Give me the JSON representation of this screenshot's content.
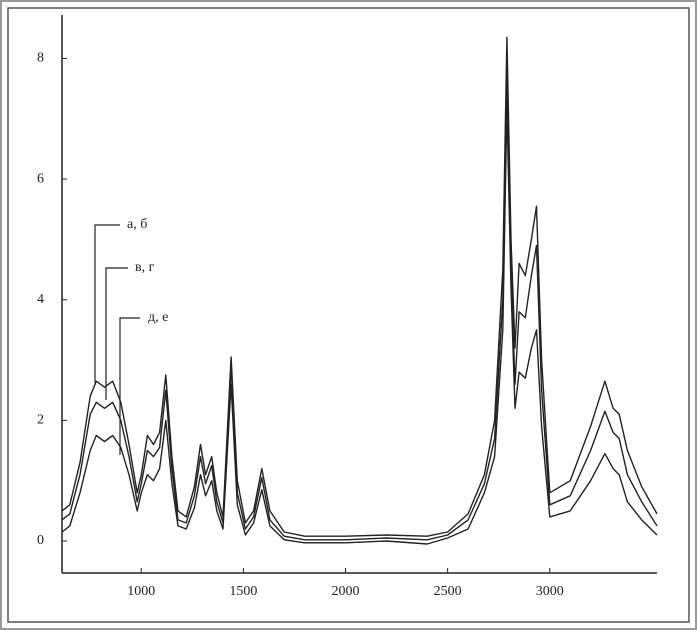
{
  "chart_data": {
    "type": "line",
    "annotations": [
      "а, б",
      "в, г",
      "д, е"
    ],
    "x": [
      612,
      650,
      700,
      750,
      780,
      820,
      860,
      900,
      940,
      980,
      1000,
      1030,
      1060,
      1090,
      1120,
      1150,
      1180,
      1220,
      1260,
      1290,
      1315,
      1345,
      1370,
      1400,
      1440,
      1470,
      1510,
      1550,
      1590,
      1630,
      1700,
      1800,
      2000,
      2200,
      2400,
      2500,
      2600,
      2680,
      2730,
      2770,
      2790,
      2810,
      2830,
      2850,
      2880,
      2910,
      2935,
      2960,
      3000,
      3100,
      3200,
      3270,
      3310,
      3340,
      3380,
      3450,
      3525
    ],
    "series": [
      {
        "color": "#222",
        "values": [
          0.5,
          0.6,
          1.3,
          2.4,
          2.65,
          2.55,
          2.65,
          2.3,
          1.6,
          0.8,
          1.1,
          1.75,
          1.6,
          1.8,
          2.75,
          1.4,
          0.5,
          0.4,
          0.9,
          1.6,
          1.1,
          1.4,
          0.8,
          0.4,
          3.05,
          1.0,
          0.3,
          0.5,
          1.2,
          0.5,
          0.15,
          0.08,
          0.08,
          0.1,
          0.08,
          0.15,
          0.45,
          1.1,
          2.0,
          4.5,
          8.35,
          5.0,
          3.2,
          4.6,
          4.4,
          5.0,
          5.55,
          3.0,
          0.8,
          1.0,
          1.9,
          2.65,
          2.2,
          2.1,
          1.5,
          0.9,
          0.45
        ]
      },
      {
        "color": "#222",
        "values": [
          0.35,
          0.45,
          1.1,
          2.1,
          2.3,
          2.2,
          2.3,
          2.0,
          1.4,
          0.65,
          0.95,
          1.5,
          1.4,
          1.55,
          2.5,
          1.2,
          0.35,
          0.3,
          0.75,
          1.4,
          0.95,
          1.25,
          0.65,
          0.3,
          2.9,
          0.8,
          0.2,
          0.4,
          1.05,
          0.35,
          0.08,
          0.02,
          0.02,
          0.05,
          0.02,
          0.1,
          0.35,
          0.95,
          1.7,
          4.0,
          7.8,
          4.6,
          2.6,
          3.8,
          3.7,
          4.4,
          4.9,
          2.5,
          0.6,
          0.75,
          1.5,
          2.15,
          1.8,
          1.7,
          1.1,
          0.65,
          0.25
        ]
      },
      {
        "color": "#222",
        "values": [
          0.15,
          0.25,
          0.8,
          1.5,
          1.75,
          1.65,
          1.75,
          1.55,
          1.1,
          0.5,
          0.8,
          1.1,
          1.0,
          1.2,
          2.0,
          0.95,
          0.25,
          0.2,
          0.55,
          1.1,
          0.75,
          1.0,
          0.5,
          0.2,
          2.6,
          0.6,
          0.1,
          0.3,
          0.85,
          0.25,
          0.02,
          -0.03,
          -0.03,
          0.0,
          -0.05,
          0.05,
          0.2,
          0.8,
          1.4,
          3.5,
          7.2,
          4.2,
          2.2,
          2.8,
          2.7,
          3.2,
          3.5,
          1.9,
          0.4,
          0.5,
          1.0,
          1.45,
          1.2,
          1.1,
          0.65,
          0.35,
          0.1
        ]
      }
    ],
    "xlim": [
      612,
      3525
    ],
    "xticks": [
      1000,
      1500,
      2000,
      2500,
      3000
    ],
    "ylim": [
      -0.53,
      8.72
    ],
    "yticks": [
      0,
      2,
      4,
      6,
      8
    ]
  }
}
